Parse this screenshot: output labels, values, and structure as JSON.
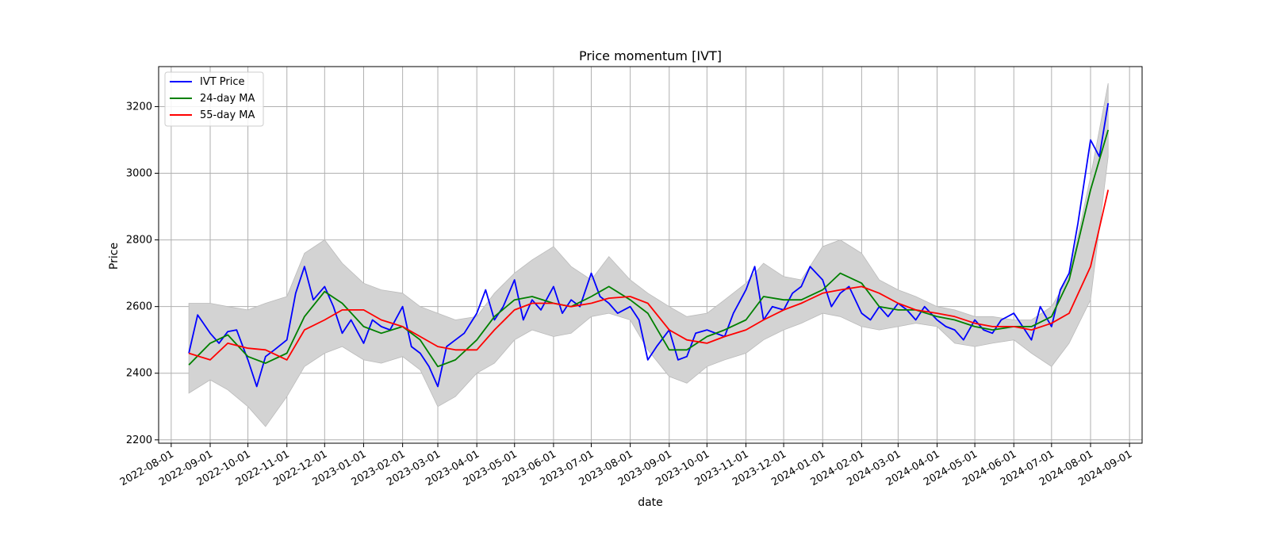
{
  "chart_data": {
    "type": "line",
    "title": "Price momentum [IVT]",
    "xlabel": "date",
    "ylabel": "Price",
    "xlim": [
      "2022-07-22",
      "2024-09-11"
    ],
    "ylim": [
      2190,
      3320
    ],
    "grid": true,
    "legend_position": "top-left",
    "x_ticks": [
      "2022-08-01",
      "2022-09-01",
      "2022-10-01",
      "2022-11-01",
      "2022-12-01",
      "2023-01-01",
      "2023-02-01",
      "2023-03-01",
      "2023-04-01",
      "2023-05-01",
      "2023-06-01",
      "2023-07-01",
      "2023-08-01",
      "2023-09-01",
      "2023-10-01",
      "2023-11-01",
      "2023-12-01",
      "2024-01-01",
      "2024-02-01",
      "2024-03-01",
      "2024-04-01",
      "2024-05-01",
      "2024-06-01",
      "2024-07-01",
      "2024-08-01",
      "2024-09-01"
    ],
    "y_ticks": [
      2200,
      2400,
      2600,
      2800,
      3000,
      3200
    ],
    "colors": {
      "price": "#0000ff",
      "ma_short": "#008000",
      "ma_long": "#ff0000",
      "band": "#d3d3d3",
      "grid": "#b0b0b0"
    },
    "band": {
      "x": [
        "2022-08-15",
        "2022-09-01",
        "2022-09-15",
        "2022-10-01",
        "2022-10-15",
        "2022-11-01",
        "2022-11-15",
        "2022-12-01",
        "2022-12-15",
        "2023-01-01",
        "2023-01-15",
        "2023-02-01",
        "2023-02-15",
        "2023-03-01",
        "2023-03-15",
        "2023-04-01",
        "2023-04-15",
        "2023-05-01",
        "2023-05-15",
        "2023-06-01",
        "2023-06-15",
        "2023-07-01",
        "2023-07-15",
        "2023-08-01",
        "2023-08-15",
        "2023-09-01",
        "2023-09-15",
        "2023-10-01",
        "2023-10-15",
        "2023-11-01",
        "2023-11-15",
        "2023-12-01",
        "2023-12-15",
        "2024-01-01",
        "2024-01-15",
        "2024-02-01",
        "2024-02-15",
        "2024-03-01",
        "2024-03-15",
        "2024-04-01",
        "2024-04-15",
        "2024-05-01",
        "2024-05-15",
        "2024-06-01",
        "2024-06-15",
        "2024-07-01",
        "2024-07-15",
        "2024-08-01",
        "2024-08-15"
      ],
      "upper": [
        2610,
        2610,
        2600,
        2590,
        2610,
        2630,
        2760,
        2800,
        2730,
        2670,
        2650,
        2640,
        2600,
        2580,
        2560,
        2570,
        2640,
        2700,
        2740,
        2780,
        2720,
        2680,
        2750,
        2680,
        2640,
        2600,
        2570,
        2580,
        2620,
        2670,
        2730,
        2690,
        2680,
        2780,
        2800,
        2760,
        2680,
        2650,
        2630,
        2600,
        2590,
        2570,
        2570,
        2560,
        2560,
        2600,
        2690,
        2990,
        3270
      ],
      "lower": [
        2340,
        2380,
        2350,
        2300,
        2240,
        2330,
        2420,
        2460,
        2480,
        2440,
        2430,
        2450,
        2410,
        2300,
        2330,
        2400,
        2430,
        2500,
        2530,
        2510,
        2520,
        2570,
        2580,
        2560,
        2470,
        2390,
        2370,
        2420,
        2440,
        2460,
        2500,
        2530,
        2550,
        2580,
        2570,
        2540,
        2530,
        2540,
        2550,
        2540,
        2490,
        2480,
        2490,
        2500,
        2460,
        2420,
        2490,
        2620,
        3050
      ]
    },
    "series": [
      {
        "name": "IVT Price",
        "x": [
          "2022-08-15",
          "2022-08-22",
          "2022-09-01",
          "2022-09-08",
          "2022-09-15",
          "2022-09-22",
          "2022-10-01",
          "2022-10-08",
          "2022-10-15",
          "2022-10-22",
          "2022-11-01",
          "2022-11-08",
          "2022-11-15",
          "2022-11-22",
          "2022-12-01",
          "2022-12-08",
          "2022-12-15",
          "2022-12-22",
          "2023-01-01",
          "2023-01-08",
          "2023-01-15",
          "2023-01-22",
          "2023-02-01",
          "2023-02-08",
          "2023-02-15",
          "2023-02-22",
          "2023-03-01",
          "2023-03-08",
          "2023-03-15",
          "2023-03-22",
          "2023-04-01",
          "2023-04-08",
          "2023-04-15",
          "2023-04-22",
          "2023-05-01",
          "2023-05-08",
          "2023-05-15",
          "2023-05-22",
          "2023-06-01",
          "2023-06-08",
          "2023-06-15",
          "2023-06-22",
          "2023-07-01",
          "2023-07-08",
          "2023-07-15",
          "2023-07-22",
          "2023-08-01",
          "2023-08-08",
          "2023-08-15",
          "2023-08-22",
          "2023-09-01",
          "2023-09-08",
          "2023-09-15",
          "2023-09-22",
          "2023-10-01",
          "2023-10-08",
          "2023-10-15",
          "2023-10-22",
          "2023-11-01",
          "2023-11-08",
          "2023-11-15",
          "2023-11-22",
          "2023-12-01",
          "2023-12-08",
          "2023-12-15",
          "2023-12-22",
          "2024-01-01",
          "2024-01-08",
          "2024-01-15",
          "2024-01-22",
          "2024-02-01",
          "2024-02-08",
          "2024-02-15",
          "2024-02-22",
          "2024-03-01",
          "2024-03-08",
          "2024-03-15",
          "2024-03-22",
          "2024-04-01",
          "2024-04-08",
          "2024-04-15",
          "2024-04-22",
          "2024-05-01",
          "2024-05-08",
          "2024-05-15",
          "2024-05-22",
          "2024-06-01",
          "2024-06-08",
          "2024-06-15",
          "2024-06-22",
          "2024-07-01",
          "2024-07-08",
          "2024-07-15",
          "2024-07-22",
          "2024-08-01",
          "2024-08-08",
          "2024-08-15"
        ],
        "values": [
          2460,
          2575,
          2520,
          2490,
          2525,
          2530,
          2440,
          2360,
          2450,
          2470,
          2500,
          2640,
          2720,
          2620,
          2660,
          2600,
          2520,
          2560,
          2490,
          2560,
          2540,
          2530,
          2600,
          2480,
          2460,
          2420,
          2360,
          2480,
          2500,
          2520,
          2580,
          2650,
          2560,
          2600,
          2680,
          2560,
          2620,
          2590,
          2660,
          2580,
          2620,
          2600,
          2700,
          2630,
          2610,
          2580,
          2600,
          2560,
          2440,
          2480,
          2530,
          2440,
          2450,
          2520,
          2530,
          2520,
          2510,
          2580,
          2650,
          2720,
          2560,
          2600,
          2590,
          2640,
          2660,
          2720,
          2680,
          2600,
          2640,
          2660,
          2580,
          2560,
          2600,
          2570,
          2610,
          2590,
          2560,
          2600,
          2560,
          2540,
          2530,
          2500,
          2560,
          2530,
          2520,
          2560,
          2580,
          2540,
          2500,
          2600,
          2540,
          2650,
          2700,
          2850,
          3100,
          3050,
          3210
        ]
      },
      {
        "name": "24-day MA",
        "x": [
          "2022-08-15",
          "2022-09-01",
          "2022-09-15",
          "2022-10-01",
          "2022-10-15",
          "2022-11-01",
          "2022-11-15",
          "2022-12-01",
          "2022-12-15",
          "2023-01-01",
          "2023-01-15",
          "2023-02-01",
          "2023-02-15",
          "2023-03-01",
          "2023-03-15",
          "2023-04-01",
          "2023-04-15",
          "2023-05-01",
          "2023-05-15",
          "2023-06-01",
          "2023-06-15",
          "2023-07-01",
          "2023-07-15",
          "2023-08-01",
          "2023-08-15",
          "2023-09-01",
          "2023-09-15",
          "2023-10-01",
          "2023-10-15",
          "2023-11-01",
          "2023-11-15",
          "2023-12-01",
          "2023-12-15",
          "2024-01-01",
          "2024-01-15",
          "2024-02-01",
          "2024-02-15",
          "2024-03-01",
          "2024-03-15",
          "2024-04-01",
          "2024-04-15",
          "2024-05-01",
          "2024-05-15",
          "2024-06-01",
          "2024-06-15",
          "2024-07-01",
          "2024-07-15",
          "2024-08-01",
          "2024-08-15"
        ],
        "values": [
          2425,
          2490,
          2515,
          2450,
          2430,
          2460,
          2570,
          2645,
          2610,
          2540,
          2520,
          2540,
          2500,
          2420,
          2440,
          2500,
          2570,
          2620,
          2630,
          2610,
          2600,
          2630,
          2660,
          2620,
          2580,
          2470,
          2470,
          2510,
          2530,
          2560,
          2630,
          2620,
          2620,
          2650,
          2700,
          2670,
          2600,
          2590,
          2590,
          2570,
          2560,
          2540,
          2530,
          2540,
          2540,
          2570,
          2680,
          2950,
          3130
        ]
      },
      {
        "name": "55-day MA",
        "x": [
          "2022-08-15",
          "2022-09-01",
          "2022-09-15",
          "2022-10-01",
          "2022-10-15",
          "2022-11-01",
          "2022-11-15",
          "2022-12-01",
          "2022-12-15",
          "2023-01-01",
          "2023-01-15",
          "2023-02-01",
          "2023-02-15",
          "2023-03-01",
          "2023-03-15",
          "2023-04-01",
          "2023-04-15",
          "2023-05-01",
          "2023-05-15",
          "2023-06-01",
          "2023-06-15",
          "2023-07-01",
          "2023-07-15",
          "2023-08-01",
          "2023-08-15",
          "2023-09-01",
          "2023-09-15",
          "2023-10-01",
          "2023-10-15",
          "2023-11-01",
          "2023-11-15",
          "2023-12-01",
          "2023-12-15",
          "2024-01-01",
          "2024-01-15",
          "2024-02-01",
          "2024-02-15",
          "2024-03-01",
          "2024-03-15",
          "2024-04-01",
          "2024-04-15",
          "2024-05-01",
          "2024-05-15",
          "2024-06-01",
          "2024-06-15",
          "2024-07-01",
          "2024-07-15",
          "2024-08-01",
          "2024-08-15"
        ],
        "values": [
          2460,
          2440,
          2490,
          2475,
          2470,
          2440,
          2530,
          2560,
          2590,
          2590,
          2560,
          2540,
          2510,
          2480,
          2470,
          2470,
          2530,
          2590,
          2610,
          2610,
          2600,
          2610,
          2625,
          2630,
          2610,
          2530,
          2500,
          2490,
          2510,
          2530,
          2560,
          2590,
          2610,
          2640,
          2650,
          2660,
          2640,
          2610,
          2590,
          2580,
          2570,
          2550,
          2540,
          2540,
          2530,
          2550,
          2580,
          2720,
          2950
        ]
      }
    ]
  }
}
